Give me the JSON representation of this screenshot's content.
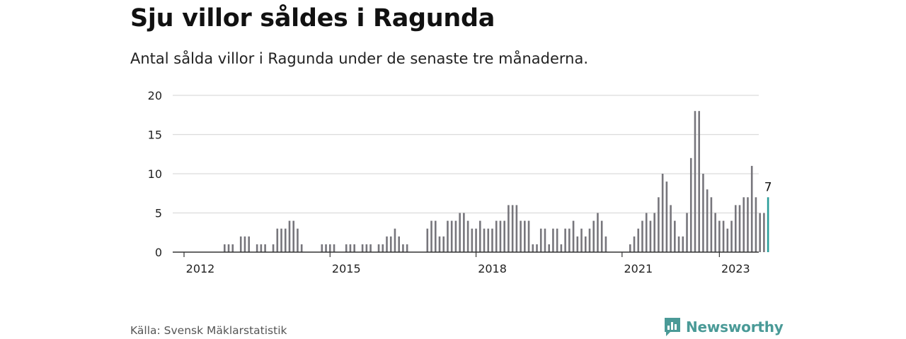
{
  "header": {
    "title": "Sju villor såldes i Ragunda",
    "subtitle": "Antal sålda villor i Ragunda under de senaste tre månaderna."
  },
  "footer": {
    "source": "Källa: Svensk Mäklarstatistik",
    "brand": "Newsworthy"
  },
  "colors": {
    "bar": "#77767c",
    "highlight": "#2a9d9a",
    "grid": "#dcdcdc",
    "axis": "#333333",
    "brand": "#4a9a97"
  },
  "chart_data": {
    "type": "bar",
    "title": "Sju villor såldes i Ragunda",
    "subtitle": "Antal sålda villor i Ragunda under de senaste tre månaderna.",
    "xlabel": "",
    "ylabel": "",
    "ylim": [
      0,
      20
    ],
    "yticks": [
      0,
      5,
      10,
      15,
      20
    ],
    "xtick_labels": [
      "2012",
      "2015",
      "2018",
      "2021",
      "2023"
    ],
    "xtick_months": [
      0,
      36,
      72,
      108,
      132
    ],
    "month_start_label": "2012",
    "grid": true,
    "values": [
      0,
      0,
      0,
      0,
      0,
      0,
      0,
      0,
      0,
      0,
      1,
      1,
      1,
      0,
      2,
      2,
      2,
      0,
      1,
      1,
      1,
      0,
      1,
      3,
      3,
      3,
      4,
      4,
      3,
      1,
      0,
      0,
      0,
      0,
      1,
      1,
      1,
      1,
      0,
      0,
      1,
      1,
      1,
      0,
      1,
      1,
      1,
      0,
      1,
      1,
      2,
      2,
      3,
      2,
      1,
      1,
      0,
      0,
      0,
      0,
      3,
      4,
      4,
      2,
      2,
      4,
      4,
      4,
      5,
      5,
      4,
      3,
      3,
      4,
      3,
      3,
      3,
      4,
      4,
      4,
      6,
      6,
      6,
      4,
      4,
      4,
      1,
      1,
      3,
      3,
      1,
      3,
      3,
      1,
      3,
      3,
      4,
      2,
      3,
      2,
      3,
      4,
      5,
      4,
      2,
      0,
      0,
      0,
      0,
      0,
      1,
      2,
      3,
      4,
      5,
      4,
      5,
      7,
      10,
      9,
      6,
      4,
      2,
      2,
      5,
      12,
      18,
      18,
      10,
      8,
      7,
      5,
      4,
      4,
      3,
      4,
      6,
      6,
      7,
      7,
      11,
      7,
      5,
      5,
      7
    ],
    "highlight_label": "7"
  }
}
